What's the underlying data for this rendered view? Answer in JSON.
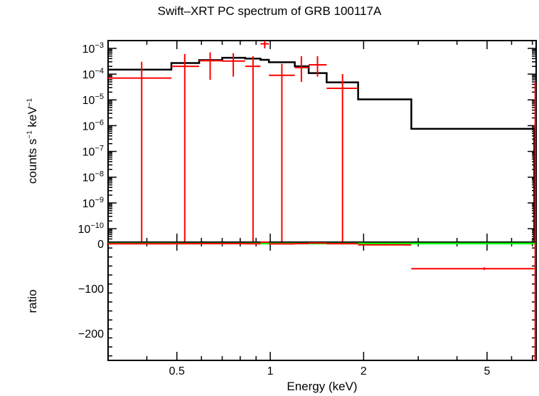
{
  "chart_data": {
    "type": "scatter",
    "title": "Swift–XRT PC spectrum of GRB 100117A",
    "xlabel": "Energy (keV)",
    "x_scale": "log",
    "xlim": [
      0.3,
      7.2
    ],
    "x_ticks": [
      {
        "value": 0.5,
        "label": "0.5"
      },
      {
        "value": 1,
        "label": "1"
      },
      {
        "value": 2,
        "label": "2"
      },
      {
        "value": 5,
        "label": "5"
      }
    ],
    "panels": [
      {
        "name": "spectrum",
        "ylabel_html": "counts s<tspan dy='-6' font-size='10'>−1</tspan><tspan dy='6'> keV</tspan><tspan dy='-6' font-size='10'>−1</tspan>",
        "ylabel": "counts s⁻¹ keV⁻¹",
        "y_scale": "log",
        "ylim": [
          3e-11,
          0.002
        ],
        "y_ticks": [
          {
            "value": 0.001,
            "base": "10",
            "exp": "−3"
          },
          {
            "value": 0.0001,
            "base": "10",
            "exp": "−4"
          },
          {
            "value": 1e-05,
            "base": "10",
            "exp": "−5"
          },
          {
            "value": 1e-06,
            "base": "10",
            "exp": "−6"
          },
          {
            "value": 1e-07,
            "base": "10",
            "exp": "−7"
          },
          {
            "value": 1e-08,
            "base": "10",
            "exp": "−8"
          },
          {
            "value": 1e-09,
            "base": "10",
            "exp": "−9"
          },
          {
            "value": 1e-10,
            "base": "10",
            "exp": "−10"
          }
        ],
        "data": [
          {
            "x": 0.385,
            "xlo": 0.3,
            "xhi": 0.48,
            "y": 7e-05,
            "ylo": 3e-11,
            "yhi": 0.0003
          },
          {
            "x": 0.53,
            "xlo": 0.48,
            "xhi": 0.59,
            "y": 0.0002,
            "ylo": 3e-11,
            "yhi": 0.0006
          },
          {
            "x": 0.64,
            "xlo": 0.59,
            "xhi": 0.7,
            "y": 0.00033,
            "ylo": 6e-05,
            "yhi": 0.0007
          },
          {
            "x": 0.76,
            "xlo": 0.7,
            "xhi": 0.83,
            "y": 0.00032,
            "ylo": 8e-05,
            "yhi": 0.00065
          },
          {
            "x": 0.88,
            "xlo": 0.83,
            "xhi": 0.93,
            "y": 0.0002,
            "ylo": 3e-11,
            "yhi": 0.0005
          },
          {
            "x": 0.96,
            "xlo": 0.93,
            "xhi": 0.99,
            "y": 0.0015,
            "ylo": 0.001,
            "yhi": 0.002
          },
          {
            "x": 1.09,
            "xlo": 0.99,
            "xhi": 1.2,
            "y": 9e-05,
            "ylo": 3e-11,
            "yhi": 0.00025
          },
          {
            "x": 1.26,
            "xlo": 1.2,
            "xhi": 1.33,
            "y": 0.00018,
            "ylo": 5e-05,
            "yhi": 0.0005
          },
          {
            "x": 1.42,
            "xlo": 1.33,
            "xhi": 1.52,
            "y": 0.00023,
            "ylo": 8e-05,
            "yhi": 0.0005
          },
          {
            "x": 1.71,
            "xlo": 1.52,
            "xhi": 1.92,
            "y": 2.8e-05,
            "ylo": 3e-11,
            "yhi": 0.0001
          },
          {
            "x": 7.15,
            "xlo": 7.1,
            "xhi": 7.2,
            "y": 1e-06,
            "ylo": 3e-11,
            "yhi": 5e-05
          }
        ],
        "model_step": [
          {
            "x0": 0.3,
            "x1": 0.48,
            "y": 0.00015
          },
          {
            "x0": 0.48,
            "x1": 0.59,
            "y": 0.00027
          },
          {
            "x0": 0.59,
            "x1": 0.7,
            "y": 0.00035
          },
          {
            "x0": 0.7,
            "x1": 0.83,
            "y": 0.00043
          },
          {
            "x0": 0.83,
            "x1": 0.93,
            "y": 0.0004
          },
          {
            "x0": 0.93,
            "x1": 0.99,
            "y": 0.00036
          },
          {
            "x0": 0.99,
            "x1": 1.2,
            "y": 0.00029
          },
          {
            "x0": 1.2,
            "x1": 1.33,
            "y": 0.0002
          },
          {
            "x0": 1.33,
            "x1": 1.52,
            "y": 0.00011
          },
          {
            "x0": 1.52,
            "x1": 1.92,
            "y": 4.8e-05
          },
          {
            "x0": 1.92,
            "x1": 2.85,
            "y": 1.05e-05
          },
          {
            "x0": 2.85,
            "x1": 7.1,
            "y": 7.5e-07
          },
          {
            "x0": 7.1,
            "x1": 7.2,
            "y": 3e-11
          }
        ],
        "data_color": "#ff0000",
        "model_color": "#000000"
      },
      {
        "name": "ratio",
        "ylabel": "ratio",
        "y_scale": "linear",
        "ylim": [
          -260,
          3
        ],
        "y_ticks": [
          {
            "value": 0,
            "label": "0"
          },
          {
            "value": -100,
            "label": "−100"
          },
          {
            "value": -200,
            "label": "−200"
          }
        ],
        "reference_line": {
          "y": 0,
          "color": "#00ff00"
        },
        "data": [
          {
            "x": 0.385,
            "xlo": 0.3,
            "xhi": 0.48,
            "y": -0.5,
            "ylo": -1.0,
            "yhi": 0.5
          },
          {
            "x": 0.53,
            "xlo": 0.48,
            "xhi": 0.59,
            "y": -0.3,
            "ylo": -1.0,
            "yhi": 0.5
          },
          {
            "x": 0.64,
            "xlo": 0.59,
            "xhi": 0.7,
            "y": -0.1,
            "ylo": -0.8,
            "yhi": 0.6
          },
          {
            "x": 0.76,
            "xlo": 0.7,
            "xhi": 0.83,
            "y": -0.2,
            "ylo": -0.8,
            "yhi": 0.5
          },
          {
            "x": 0.88,
            "xlo": 0.83,
            "xhi": 0.93,
            "y": -0.5,
            "ylo": -1.0,
            "yhi": 0.3
          },
          {
            "x": 0.96,
            "xlo": 0.93,
            "xhi": 0.99,
            "y": 3.0,
            "ylo": 2.0,
            "yhi": 4.5
          },
          {
            "x": 1.09,
            "xlo": 0.99,
            "xhi": 1.2,
            "y": -0.7,
            "ylo": -1.0,
            "yhi": 0.2
          },
          {
            "x": 1.26,
            "xlo": 1.2,
            "xhi": 1.33,
            "y": -0.1,
            "ylo": -0.7,
            "yhi": 0.6
          },
          {
            "x": 1.42,
            "xlo": 1.33,
            "xhi": 1.52,
            "y": 1.0,
            "ylo": 0.3,
            "yhi": 1.6
          },
          {
            "x": 1.71,
            "xlo": 1.52,
            "xhi": 1.92,
            "y": -0.4,
            "ylo": -1.0,
            "yhi": 1.0
          },
          {
            "x": 2.35,
            "xlo": 1.92,
            "xhi": 2.85,
            "y": -3.0,
            "ylo": -4.5,
            "yhi": -1.5
          },
          {
            "x": 4.9,
            "xlo": 2.85,
            "xhi": 7.1,
            "y": -56,
            "ylo": -59,
            "yhi": -53
          },
          {
            "x": 7.15,
            "xlo": 7.1,
            "xhi": 7.2,
            "y": -255,
            "ylo": -260,
            "yhi": 3
          }
        ],
        "data_color": "#ff0000"
      }
    ]
  }
}
